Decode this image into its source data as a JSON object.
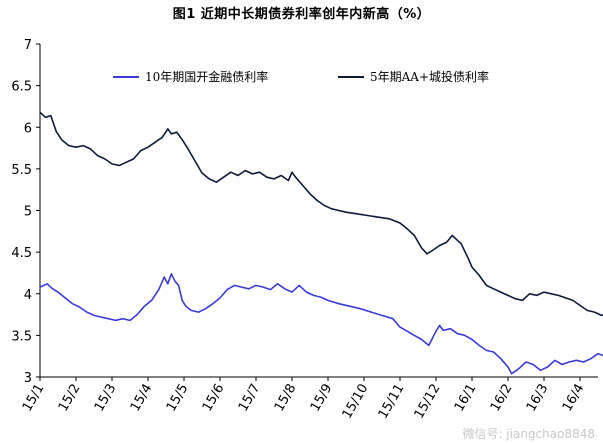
{
  "title": "图1  近期中长期债券利率创年内新高（%）",
  "watermark": "微信号: jiangchao8848",
  "chart_data": {
    "type": "line",
    "title": "图1  近期中长期债券利率创年内新高（%）",
    "xlabel": "",
    "ylabel": "",
    "ylim": [
      3,
      7
    ],
    "yticks": [
      "3",
      "3.5",
      "4",
      "4.5",
      "5",
      "5.5",
      "6",
      "6.5",
      "7"
    ],
    "categories": [
      "15/1",
      "15/2",
      "15/3",
      "15/4",
      "15/5",
      "15/6",
      "15/7",
      "15/8",
      "15/9",
      "15/10",
      "15/11",
      "15/12",
      "16/1",
      "16/2",
      "16/3",
      "16/4"
    ],
    "grid": false,
    "legend": "top",
    "series": [
      {
        "name": "10年期国开金融债利率",
        "color": "#3b3bd9",
        "points": [
          [
            0.0,
            4.08
          ],
          [
            0.2,
            4.12
          ],
          [
            0.35,
            4.06
          ],
          [
            0.5,
            4.02
          ],
          [
            0.7,
            3.95
          ],
          [
            0.9,
            3.88
          ],
          [
            1.1,
            3.84
          ],
          [
            1.3,
            3.78
          ],
          [
            1.5,
            3.74
          ],
          [
            1.7,
            3.72
          ],
          [
            1.9,
            3.7
          ],
          [
            2.1,
            3.68
          ],
          [
            2.3,
            3.7
          ],
          [
            2.5,
            3.68
          ],
          [
            2.7,
            3.75
          ],
          [
            2.9,
            3.85
          ],
          [
            3.1,
            3.92
          ],
          [
            3.3,
            4.05
          ],
          [
            3.45,
            4.2
          ],
          [
            3.55,
            4.12
          ],
          [
            3.65,
            4.24
          ],
          [
            3.75,
            4.15
          ],
          [
            3.85,
            4.1
          ],
          [
            3.95,
            3.92
          ],
          [
            4.05,
            3.85
          ],
          [
            4.2,
            3.8
          ],
          [
            4.4,
            3.78
          ],
          [
            4.6,
            3.82
          ],
          [
            4.8,
            3.88
          ],
          [
            5.0,
            3.95
          ],
          [
            5.2,
            4.05
          ],
          [
            5.4,
            4.1
          ],
          [
            5.6,
            4.08
          ],
          [
            5.8,
            4.06
          ],
          [
            6.0,
            4.1
          ],
          [
            6.2,
            4.08
          ],
          [
            6.4,
            4.05
          ],
          [
            6.6,
            4.12
          ],
          [
            6.8,
            4.06
          ],
          [
            7.0,
            4.02
          ],
          [
            7.2,
            4.1
          ],
          [
            7.4,
            4.02
          ],
          [
            7.6,
            3.98
          ],
          [
            7.8,
            3.96
          ],
          [
            8.0,
            3.92
          ],
          [
            8.3,
            3.88
          ],
          [
            8.6,
            3.85
          ],
          [
            8.9,
            3.82
          ],
          [
            9.2,
            3.78
          ],
          [
            9.5,
            3.74
          ],
          [
            9.8,
            3.7
          ],
          [
            10.0,
            3.6
          ],
          [
            10.2,
            3.55
          ],
          [
            10.4,
            3.5
          ],
          [
            10.6,
            3.45
          ],
          [
            10.8,
            3.38
          ],
          [
            11.0,
            3.55
          ],
          [
            11.1,
            3.62
          ],
          [
            11.2,
            3.56
          ],
          [
            11.4,
            3.58
          ],
          [
            11.6,
            3.52
          ],
          [
            11.8,
            3.5
          ],
          [
            12.0,
            3.45
          ],
          [
            12.2,
            3.38
          ],
          [
            12.4,
            3.32
          ],
          [
            12.6,
            3.3
          ],
          [
            12.8,
            3.22
          ],
          [
            13.0,
            3.12
          ],
          [
            13.1,
            3.04
          ],
          [
            13.3,
            3.1
          ],
          [
            13.5,
            3.18
          ],
          [
            13.7,
            3.15
          ],
          [
            13.9,
            3.08
          ],
          [
            14.1,
            3.12
          ],
          [
            14.3,
            3.2
          ],
          [
            14.5,
            3.15
          ],
          [
            14.7,
            3.18
          ],
          [
            14.9,
            3.2
          ],
          [
            15.1,
            3.18
          ],
          [
            15.3,
            3.22
          ],
          [
            15.5,
            3.28
          ],
          [
            15.7,
            3.25
          ],
          [
            15.85,
            3.35
          ],
          [
            16.0,
            3.32
          ],
          [
            16.1,
            3.4
          ],
          [
            16.2,
            3.36
          ],
          [
            16.35,
            3.44
          ]
        ]
      },
      {
        "name": "5年期AA+城投债利率",
        "color": "#0d1a3a",
        "points": [
          [
            0.0,
            6.18
          ],
          [
            0.15,
            6.12
          ],
          [
            0.3,
            6.14
          ],
          [
            0.45,
            5.95
          ],
          [
            0.6,
            5.85
          ],
          [
            0.8,
            5.78
          ],
          [
            1.0,
            5.76
          ],
          [
            1.2,
            5.78
          ],
          [
            1.4,
            5.74
          ],
          [
            1.6,
            5.66
          ],
          [
            1.8,
            5.62
          ],
          [
            2.0,
            5.56
          ],
          [
            2.2,
            5.54
          ],
          [
            2.4,
            5.58
          ],
          [
            2.6,
            5.62
          ],
          [
            2.8,
            5.72
          ],
          [
            3.0,
            5.76
          ],
          [
            3.2,
            5.82
          ],
          [
            3.4,
            5.88
          ],
          [
            3.55,
            5.98
          ],
          [
            3.65,
            5.92
          ],
          [
            3.8,
            5.94
          ],
          [
            3.95,
            5.85
          ],
          [
            4.1,
            5.75
          ],
          [
            4.3,
            5.6
          ],
          [
            4.5,
            5.45
          ],
          [
            4.7,
            5.38
          ],
          [
            4.9,
            5.34
          ],
          [
            5.1,
            5.4
          ],
          [
            5.3,
            5.46
          ],
          [
            5.5,
            5.42
          ],
          [
            5.7,
            5.48
          ],
          [
            5.9,
            5.44
          ],
          [
            6.1,
            5.46
          ],
          [
            6.3,
            5.4
          ],
          [
            6.5,
            5.38
          ],
          [
            6.7,
            5.42
          ],
          [
            6.9,
            5.36
          ],
          [
            7.0,
            5.46
          ],
          [
            7.1,
            5.4
          ],
          [
            7.3,
            5.3
          ],
          [
            7.5,
            5.2
          ],
          [
            7.7,
            5.12
          ],
          [
            7.9,
            5.06
          ],
          [
            8.1,
            5.02
          ],
          [
            8.3,
            5.0
          ],
          [
            8.5,
            4.98
          ],
          [
            8.8,
            4.96
          ],
          [
            9.1,
            4.94
          ],
          [
            9.4,
            4.92
          ],
          [
            9.7,
            4.9
          ],
          [
            10.0,
            4.85
          ],
          [
            10.2,
            4.78
          ],
          [
            10.4,
            4.7
          ],
          [
            10.6,
            4.55
          ],
          [
            10.75,
            4.48
          ],
          [
            10.9,
            4.52
          ],
          [
            11.1,
            4.58
          ],
          [
            11.3,
            4.62
          ],
          [
            11.45,
            4.7
          ],
          [
            11.55,
            4.66
          ],
          [
            11.7,
            4.6
          ],
          [
            11.9,
            4.42
          ],
          [
            12.0,
            4.32
          ],
          [
            12.2,
            4.22
          ],
          [
            12.4,
            4.1
          ],
          [
            12.6,
            4.06
          ],
          [
            12.8,
            4.02
          ],
          [
            13.0,
            3.98
          ],
          [
            13.2,
            3.94
          ],
          [
            13.4,
            3.92
          ],
          [
            13.6,
            4.0
          ],
          [
            13.8,
            3.98
          ],
          [
            14.0,
            4.02
          ],
          [
            14.2,
            4.0
          ],
          [
            14.4,
            3.98
          ],
          [
            14.6,
            3.95
          ],
          [
            14.8,
            3.92
          ],
          [
            15.0,
            3.86
          ],
          [
            15.2,
            3.8
          ],
          [
            15.4,
            3.78
          ],
          [
            15.6,
            3.74
          ],
          [
            15.8,
            3.76
          ],
          [
            15.9,
            3.82
          ],
          [
            16.0,
            3.9
          ],
          [
            16.1,
            4.05
          ],
          [
            16.2,
            4.08
          ],
          [
            16.3,
            4.15
          ],
          [
            16.4,
            4.25
          ]
        ]
      }
    ]
  }
}
